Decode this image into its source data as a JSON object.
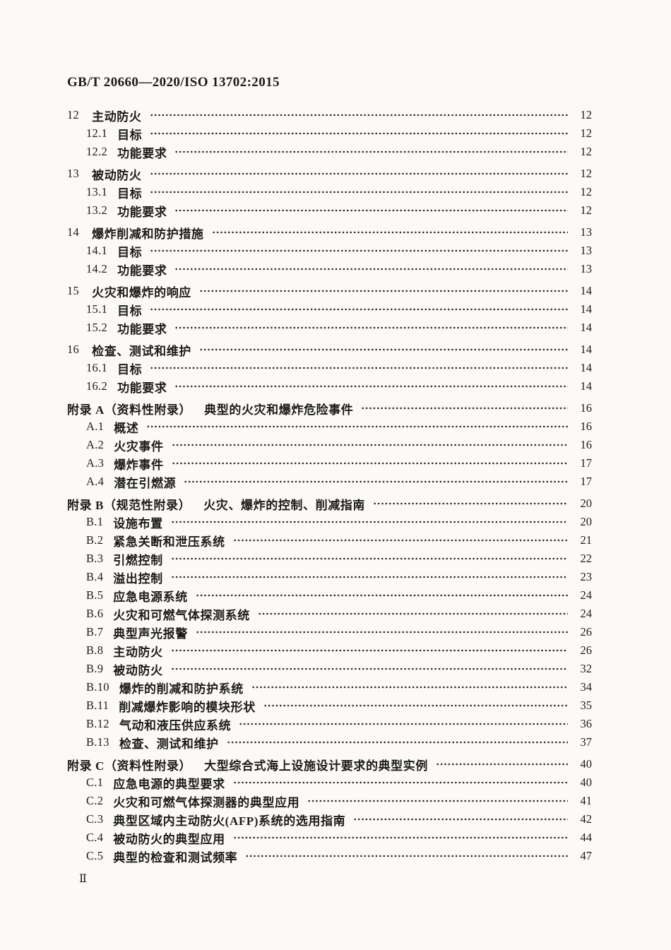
{
  "document": {
    "header": "GB/T 20660—2020/ISO 13702:2015",
    "page_number": "Ⅱ"
  },
  "toc": {
    "entries": [
      {
        "num": "12",
        "title": "主动防火",
        "page": "12",
        "level": 1
      },
      {
        "num": "12.1",
        "title": "目标",
        "page": "12",
        "level": 2
      },
      {
        "num": "12.2",
        "title": "功能要求",
        "page": "12",
        "level": 2
      },
      {
        "num": "13",
        "title": "被动防火",
        "page": "12",
        "level": 1
      },
      {
        "num": "13.1",
        "title": "目标",
        "page": "12",
        "level": 2
      },
      {
        "num": "13.2",
        "title": "功能要求",
        "page": "12",
        "level": 2
      },
      {
        "num": "14",
        "title": "爆炸削减和防护措施",
        "page": "13",
        "level": 1
      },
      {
        "num": "14.1",
        "title": "目标",
        "page": "13",
        "level": 2
      },
      {
        "num": "14.2",
        "title": "功能要求",
        "page": "13",
        "level": 2
      },
      {
        "num": "15",
        "title": "火灾和爆炸的响应",
        "page": "14",
        "level": 1
      },
      {
        "num": "15.1",
        "title": "目标",
        "page": "14",
        "level": 2
      },
      {
        "num": "15.2",
        "title": "功能要求",
        "page": "14",
        "level": 2
      },
      {
        "num": "16",
        "title": "检查、测试和维护",
        "page": "14",
        "level": 1
      },
      {
        "num": "16.1",
        "title": "目标",
        "page": "14",
        "level": 2
      },
      {
        "num": "16.2",
        "title": "功能要求",
        "page": "14",
        "level": 2
      },
      {
        "num": "附录 A（资料性附录）",
        "title": "典型的火灾和爆炸危险事件",
        "page": "16",
        "level": 1
      },
      {
        "num": "A.1",
        "title": "概述",
        "page": "16",
        "level": 2
      },
      {
        "num": "A.2",
        "title": "火灾事件",
        "page": "16",
        "level": 2
      },
      {
        "num": "A.3",
        "title": "爆炸事件",
        "page": "17",
        "level": 2
      },
      {
        "num": "A.4",
        "title": "潜在引燃源",
        "page": "17",
        "level": 2
      },
      {
        "num": "附录 B（规范性附录）",
        "title": "火灾、爆炸的控制、削减指南",
        "page": "20",
        "level": 1
      },
      {
        "num": "B.1",
        "title": "设施布置",
        "page": "20",
        "level": 2
      },
      {
        "num": "B.2",
        "title": "紧急关断和泄压系统",
        "page": "21",
        "level": 2
      },
      {
        "num": "B.3",
        "title": "引燃控制",
        "page": "22",
        "level": 2
      },
      {
        "num": "B.4",
        "title": "溢出控制",
        "page": "23",
        "level": 2
      },
      {
        "num": "B.5",
        "title": "应急电源系统",
        "page": "24",
        "level": 2
      },
      {
        "num": "B.6",
        "title": "火灾和可燃气体探测系统",
        "page": "24",
        "level": 2
      },
      {
        "num": "B.7",
        "title": "典型声光报警",
        "page": "26",
        "level": 2
      },
      {
        "num": "B.8",
        "title": "主动防火",
        "page": "26",
        "level": 2
      },
      {
        "num": "B.9",
        "title": "被动防火",
        "page": "32",
        "level": 2
      },
      {
        "num": "B.10",
        "title": "爆炸的削减和防护系统",
        "page": "34",
        "level": 2
      },
      {
        "num": "B.11",
        "title": "削减爆炸影响的模块形状",
        "page": "35",
        "level": 2
      },
      {
        "num": "B.12",
        "title": "气动和液压供应系统",
        "page": "36",
        "level": 2
      },
      {
        "num": "B.13",
        "title": "检查、测试和维护",
        "page": "37",
        "level": 2
      },
      {
        "num": "附录 C（资料性附录）",
        "title": "大型综合式海上设施设计要求的典型实例",
        "page": "40",
        "level": 1
      },
      {
        "num": "C.1",
        "title": "应急电源的典型要求",
        "page": "40",
        "level": 2
      },
      {
        "num": "C.2",
        "title": "火灾和可燃气体探测器的典型应用",
        "page": "41",
        "level": 2
      },
      {
        "num": "C.3",
        "title": "典型区域内主动防火(AFP)系统的选用指南",
        "page": "42",
        "level": 2
      },
      {
        "num": "C.4",
        "title": "被动防火的典型应用",
        "page": "44",
        "level": 2
      },
      {
        "num": "C.5",
        "title": "典型的检查和测试频率",
        "page": "47",
        "level": 2
      }
    ]
  }
}
